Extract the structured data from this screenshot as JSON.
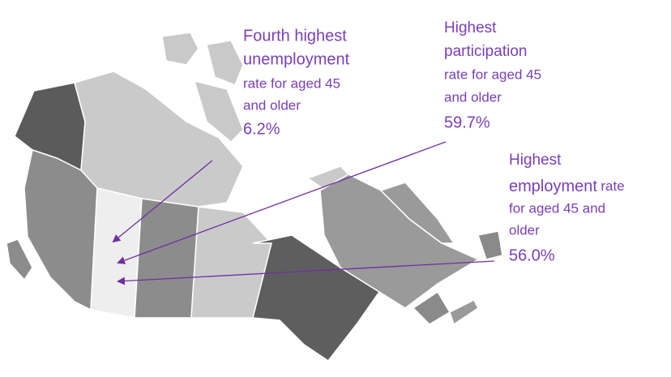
{
  "annotations": [
    {
      "lines": [
        "Fourth highest",
        "unemployment",
        "rate for aged 45",
        "and older"
      ],
      "value": "6.2%"
    },
    {
      "lines": [
        "Highest",
        "participation",
        "rate for aged 45",
        "and older"
      ],
      "value": "59.7%"
    },
    {
      "lines": [
        "Highest",
        "employment",
        "rate",
        "for aged 45 and",
        "older"
      ],
      "value": "56.0%"
    }
  ]
}
